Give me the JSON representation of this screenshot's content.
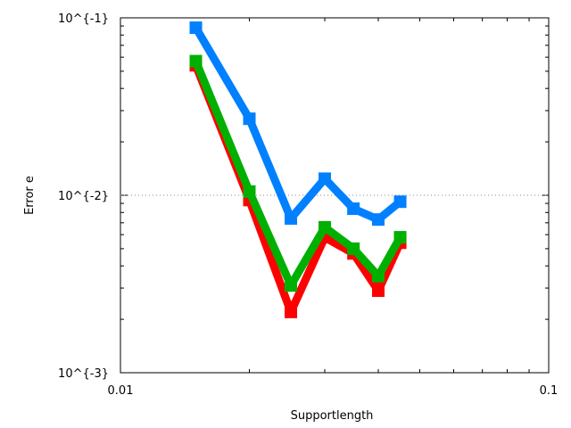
{
  "chart_data": {
    "type": "line",
    "title": "",
    "xlabel": "Supportlength",
    "ylabel": "Error e",
    "xscale": "log",
    "yscale": "log",
    "xlim": [
      0.01,
      0.1
    ],
    "ylim": [
      0.001,
      0.1
    ],
    "xticks": [
      {
        "value": 0.01,
        "label": "0.01"
      },
      {
        "value": 0.1,
        "label": "0.1"
      }
    ],
    "yticks": [
      {
        "value": 0.001,
        "label": "10^{-3}"
      },
      {
        "value": 0.01,
        "label": "10^{-2}"
      },
      {
        "value": 0.1,
        "label": "10^{-1}"
      }
    ],
    "grid": "dotted line at 10^{-2}",
    "legend": "none",
    "x": [
      0.015,
      0.02,
      0.025,
      0.03,
      0.035,
      0.04,
      0.045
    ],
    "series": [
      {
        "color": "#ff0000",
        "values": [
          0.054,
          0.0094,
          0.0022,
          0.0058,
          0.0047,
          0.0029,
          0.0054
        ]
      },
      {
        "color": "#00b000",
        "values": [
          0.057,
          0.0105,
          0.0031,
          0.0066,
          0.005,
          0.0035,
          0.0058
        ]
      },
      {
        "color": "#0080ff",
        "values": [
          0.088,
          0.027,
          0.0074,
          0.0124,
          0.0084,
          0.0073,
          0.0092
        ]
      }
    ]
  }
}
